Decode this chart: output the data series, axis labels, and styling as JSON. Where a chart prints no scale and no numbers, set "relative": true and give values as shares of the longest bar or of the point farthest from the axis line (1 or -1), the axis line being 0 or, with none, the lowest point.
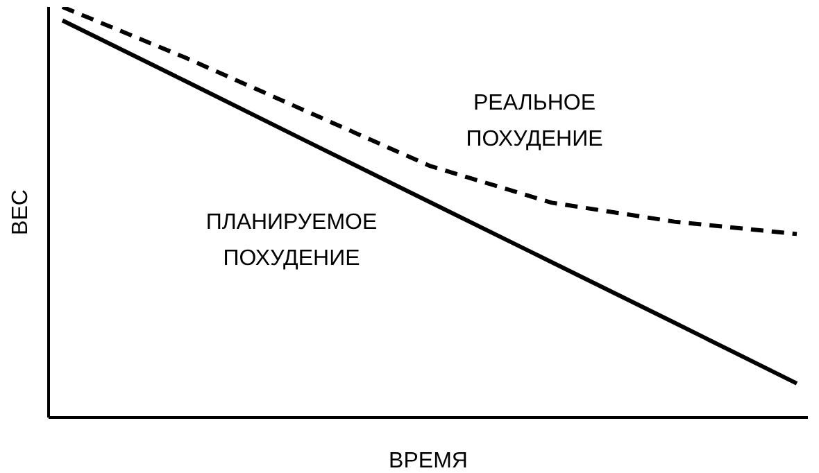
{
  "chart_data": {
    "type": "line",
    "relative": true,
    "xlabel": "ВРЕМЯ",
    "ylabel": "ВЕС",
    "categories": [
      null,
      null,
      null,
      null,
      null,
      null,
      null
    ],
    "legend": false,
    "grid": false,
    "marker": "none",
    "series": [
      {
        "name": "ПЛАНИРУЕМОЕ ПОХУДЕНИЕ",
        "color": "#000000",
        "line_style": "solid",
        "values": [
          0.967,
          0.82,
          0.672,
          0.525,
          0.378,
          0.231,
          0.083
        ]
      },
      {
        "name": "РЕАЛЬНОЕ ПОХУДЕНИЕ",
        "color": "#000000",
        "line_style": "dashed",
        "values": [
          1,
          0.877,
          0.745,
          0.613,
          0.523,
          0.477,
          0.447
        ]
      }
    ]
  }
}
